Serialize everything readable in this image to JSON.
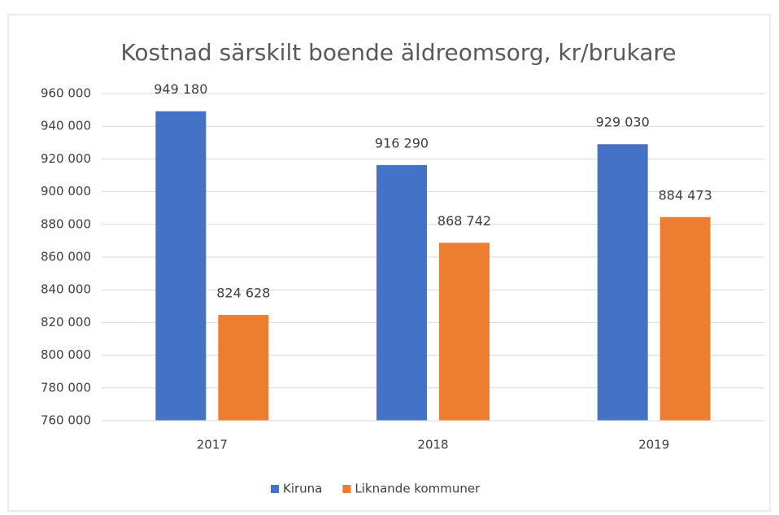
{
  "chart_data": {
    "type": "bar",
    "title": "Kostnad särskilt boende äldreomsorg, kr/brukare",
    "categories": [
      "2017",
      "2018",
      "2019"
    ],
    "series": [
      {
        "name": "Kiruna",
        "color": "#4472c4",
        "values": [
          949180,
          916290,
          929030
        ],
        "value_labels": [
          "949 180",
          "916 290",
          "929 030"
        ]
      },
      {
        "name": "Liknande kommuner",
        "color": "#ed7d31",
        "values": [
          824628,
          868742,
          884473
        ],
        "value_labels": [
          "824 628",
          "868 742",
          "884 473"
        ]
      }
    ],
    "ylim": [
      760000,
      960000
    ],
    "yticks": [
      {
        "value": 760000,
        "label": "760 000"
      },
      {
        "value": 780000,
        "label": "780 000"
      },
      {
        "value": 800000,
        "label": "800 000"
      },
      {
        "value": 820000,
        "label": "820 000"
      },
      {
        "value": 840000,
        "label": "840 000"
      },
      {
        "value": 860000,
        "label": "860 000"
      },
      {
        "value": 880000,
        "label": "880 000"
      },
      {
        "value": 900000,
        "label": "900 000"
      },
      {
        "value": 920000,
        "label": "920 000"
      },
      {
        "value": 940000,
        "label": "940 000"
      },
      {
        "value": 960000,
        "label": "960 000"
      }
    ],
    "grid": true,
    "legend": "bottom"
  }
}
